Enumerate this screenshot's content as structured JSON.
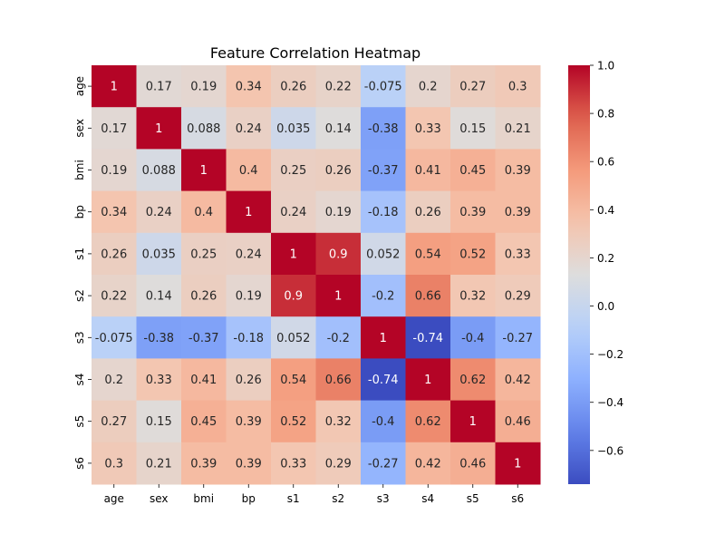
{
  "chart_data": {
    "type": "heatmap",
    "title": "Feature Correlation Heatmap",
    "xlabel": "",
    "ylabel": "",
    "x_categories": [
      "age",
      "sex",
      "bmi",
      "bp",
      "s1",
      "s2",
      "s3",
      "s4",
      "s5",
      "s6"
    ],
    "y_categories": [
      "age",
      "sex",
      "bmi",
      "bp",
      "s1",
      "s2",
      "s3",
      "s4",
      "s5",
      "s6"
    ],
    "values": [
      [
        1,
        0.17,
        0.19,
        0.34,
        0.26,
        0.22,
        -0.075,
        0.2,
        0.27,
        0.3
      ],
      [
        0.17,
        1,
        0.088,
        0.24,
        0.035,
        0.14,
        -0.38,
        0.33,
        0.15,
        0.21
      ],
      [
        0.19,
        0.088,
        1,
        0.4,
        0.25,
        0.26,
        -0.37,
        0.41,
        0.45,
        0.39
      ],
      [
        0.34,
        0.24,
        0.4,
        1,
        0.24,
        0.19,
        -0.18,
        0.26,
        0.39,
        0.39
      ],
      [
        0.26,
        0.035,
        0.25,
        0.24,
        1,
        0.9,
        0.052,
        0.54,
        0.52,
        0.33
      ],
      [
        0.22,
        0.14,
        0.26,
        0.19,
        0.9,
        1,
        -0.2,
        0.66,
        0.32,
        0.29
      ],
      [
        -0.075,
        -0.38,
        -0.37,
        -0.18,
        0.052,
        -0.2,
        1,
        -0.74,
        -0.4,
        -0.27
      ],
      [
        0.2,
        0.33,
        0.41,
        0.26,
        0.54,
        0.66,
        -0.74,
        1,
        0.62,
        0.42
      ],
      [
        0.27,
        0.15,
        0.45,
        0.39,
        0.52,
        0.32,
        -0.4,
        0.62,
        1,
        0.46
      ],
      [
        0.3,
        0.21,
        0.39,
        0.39,
        0.33,
        0.29,
        -0.27,
        0.42,
        0.46,
        1
      ]
    ],
    "labels": [
      [
        "1",
        "0.17",
        "0.19",
        "0.34",
        "0.26",
        "0.22",
        "-0.075",
        "0.2",
        "0.27",
        "0.3"
      ],
      [
        "0.17",
        "1",
        "0.088",
        "0.24",
        "0.035",
        "0.14",
        "-0.38",
        "0.33",
        "0.15",
        "0.21"
      ],
      [
        "0.19",
        "0.088",
        "1",
        "0.4",
        "0.25",
        "0.26",
        "-0.37",
        "0.41",
        "0.45",
        "0.39"
      ],
      [
        "0.34",
        "0.24",
        "0.4",
        "1",
        "0.24",
        "0.19",
        "-0.18",
        "0.26",
        "0.39",
        "0.39"
      ],
      [
        "0.26",
        "0.035",
        "0.25",
        "0.24",
        "1",
        "0.9",
        "0.052",
        "0.54",
        "0.52",
        "0.33"
      ],
      [
        "0.22",
        "0.14",
        "0.26",
        "0.19",
        "0.9",
        "1",
        "-0.2",
        "0.66",
        "0.32",
        "0.29"
      ],
      [
        "-0.075",
        "-0.38",
        "-0.37",
        "-0.18",
        "0.052",
        "-0.2",
        "1",
        "-0.74",
        "-0.4",
        "-0.27"
      ],
      [
        "0.2",
        "0.33",
        "0.41",
        "0.26",
        "0.54",
        "0.66",
        "-0.74",
        "1",
        "0.62",
        "0.42"
      ],
      [
        "0.27",
        "0.15",
        "0.45",
        "0.39",
        "0.52",
        "0.32",
        "-0.4",
        "0.62",
        "1",
        "0.46"
      ],
      [
        "0.3",
        "0.21",
        "0.39",
        "0.39",
        "0.33",
        "0.29",
        "-0.27",
        "0.42",
        "0.46",
        "1"
      ]
    ],
    "colormap": "coolwarm",
    "vmin": -0.74,
    "vmax": 1.0,
    "colorbar": {
      "ticks": [
        -0.6,
        -0.4,
        -0.2,
        0.0,
        0.2,
        0.4,
        0.6,
        0.8,
        1.0
      ],
      "tick_labels": [
        "−0.6",
        "−0.4",
        "−0.2",
        "0.0",
        "0.2",
        "0.4",
        "0.6",
        "0.8",
        "1.0"
      ]
    },
    "grid": false,
    "legend": "colorbar-right"
  }
}
